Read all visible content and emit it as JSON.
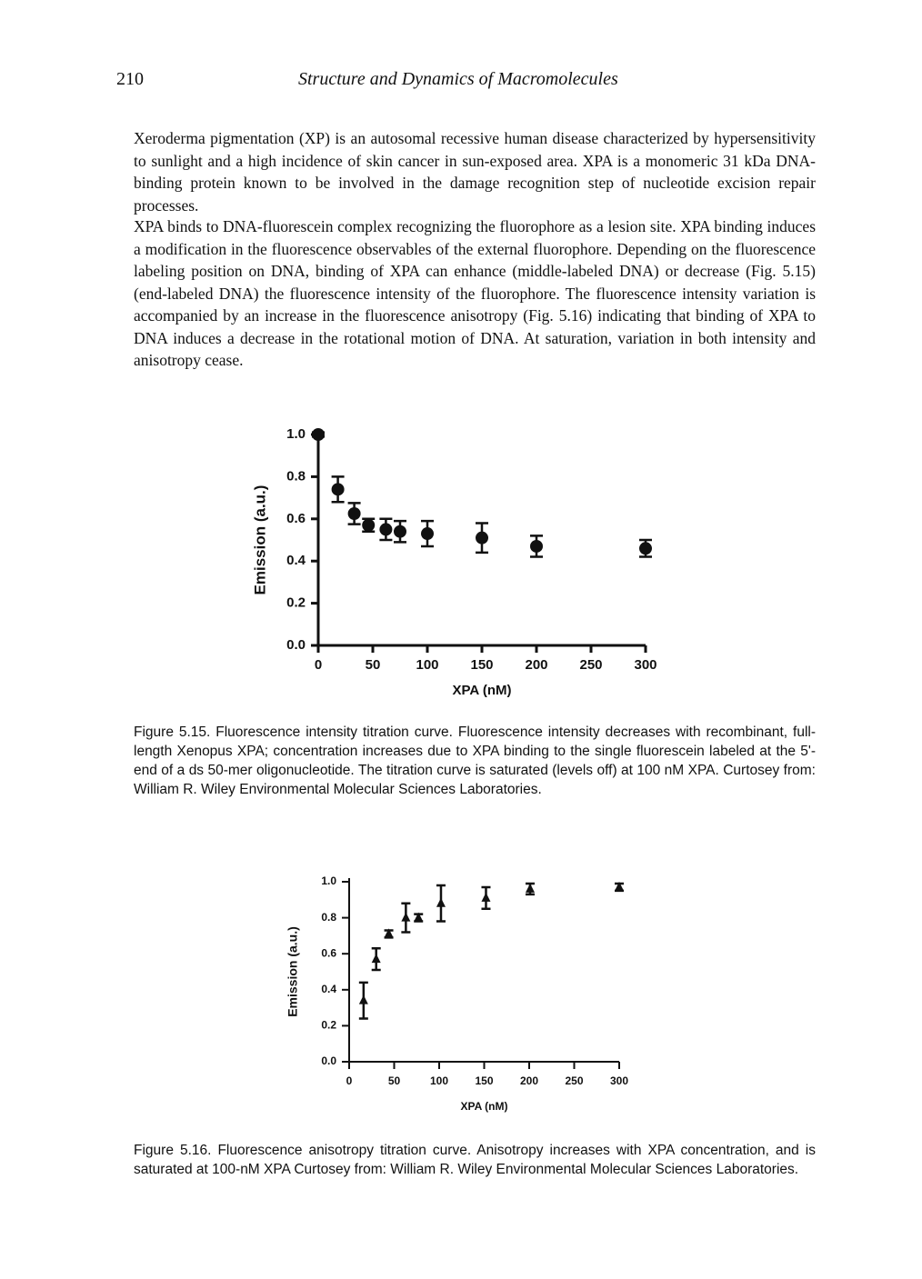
{
  "header": {
    "page_number": "210",
    "title": "Structure and Dynamics of Macromolecules"
  },
  "paragraphs": [
    "Xeroderma pigmentation (XP) is an autosomal recessive human disease characterized by hypersensitivity to sunlight and a high incidence of skin cancer in sun-exposed area. XPA is a monomeric 31 kDa DNA-binding protein known to be involved in the damage recognition step of nucleotide excision repair processes.",
    "XPA binds to DNA-fluorescein complex recognizing the fluorophore as a lesion site. XPA binding induces a modification in the fluorescence observables of the external fluorophore. Depending on the fluorescence labeling position on DNA, binding of XPA can enhance (middle-labeled DNA) or decrease (Fig. 5.15) (end-labeled DNA) the fluorescence intensity of the fluorophore. The fluorescence intensity variation is accompanied by an increase in the fluorescence anisotropy (Fig. 5.16) indicating that binding of XPA to DNA induces a decrease in the rotational motion of DNA. At saturation, variation in both intensity and anisotropy cease."
  ],
  "chart_data": [
    {
      "type": "scatter",
      "marker": "circle",
      "color": "#111111",
      "x_label": "XPA (nM)",
      "y_label": "Emission (a.u.)",
      "x": [
        0,
        18,
        33,
        46,
        62,
        75,
        100,
        150,
        200,
        300
      ],
      "values": [
        1.0,
        0.74,
        0.625,
        0.57,
        0.55,
        0.54,
        0.53,
        0.51,
        0.47,
        0.46
      ],
      "errors": [
        0.01,
        0.06,
        0.05,
        0.03,
        0.05,
        0.05,
        0.06,
        0.07,
        0.05,
        0.04
      ],
      "xlim": [
        0,
        300
      ],
      "ylim": [
        0,
        1
      ],
      "xticks": [
        0,
        50,
        100,
        150,
        200,
        250,
        300
      ],
      "yticks": [
        {
          "value": 0,
          "label": "0.0"
        },
        0.2,
        0.4,
        0.6,
        0.8,
        {
          "value": 1,
          "label": "1.0"
        }
      ]
    },
    {
      "type": "scatter",
      "marker": "triangle",
      "color": "#111111",
      "x_label": "XPA (nM)",
      "y_label": "Emission (a.u.)",
      "x": [
        16,
        30,
        44,
        63,
        77,
        102,
        152,
        201,
        300
      ],
      "values": [
        0.34,
        0.57,
        0.71,
        0.8,
        0.8,
        0.88,
        0.91,
        0.96,
        0.97
      ],
      "errors": [
        0.1,
        0.06,
        0.02,
        0.08,
        0.02,
        0.1,
        0.06,
        0.03,
        0.02
      ],
      "xlim": [
        0,
        300
      ],
      "ylim": [
        0,
        1
      ],
      "xticks": [
        0,
        50,
        100,
        150,
        200,
        250,
        300
      ],
      "yticks": [
        {
          "value": 0,
          "label": "0.0"
        },
        0.2,
        0.4,
        0.6,
        0.8,
        {
          "value": 1,
          "label": "1.0"
        }
      ]
    }
  ],
  "captions": [
    "Figure 5.15. Fluorescence intensity titration curve. Fluorescence intensity decreases with recombinant, full-length Xenopus XPA; concentration increases due to XPA binding to the single fluorescein labeled at the 5'-end of a ds 50-mer oligonucleotide. The titration curve is saturated (levels off) at 100 nM XPA. Curtosey from: William R. Wiley Environmental Molecular Sciences Laboratories.",
    "Figure 5.16. Fluorescence anisotropy titration curve. Anisotropy increases with XPA concentration, and is saturated at 100-nM XPA Curtosey from: William R. Wiley Environmental Molecular Sciences Laboratories."
  ]
}
